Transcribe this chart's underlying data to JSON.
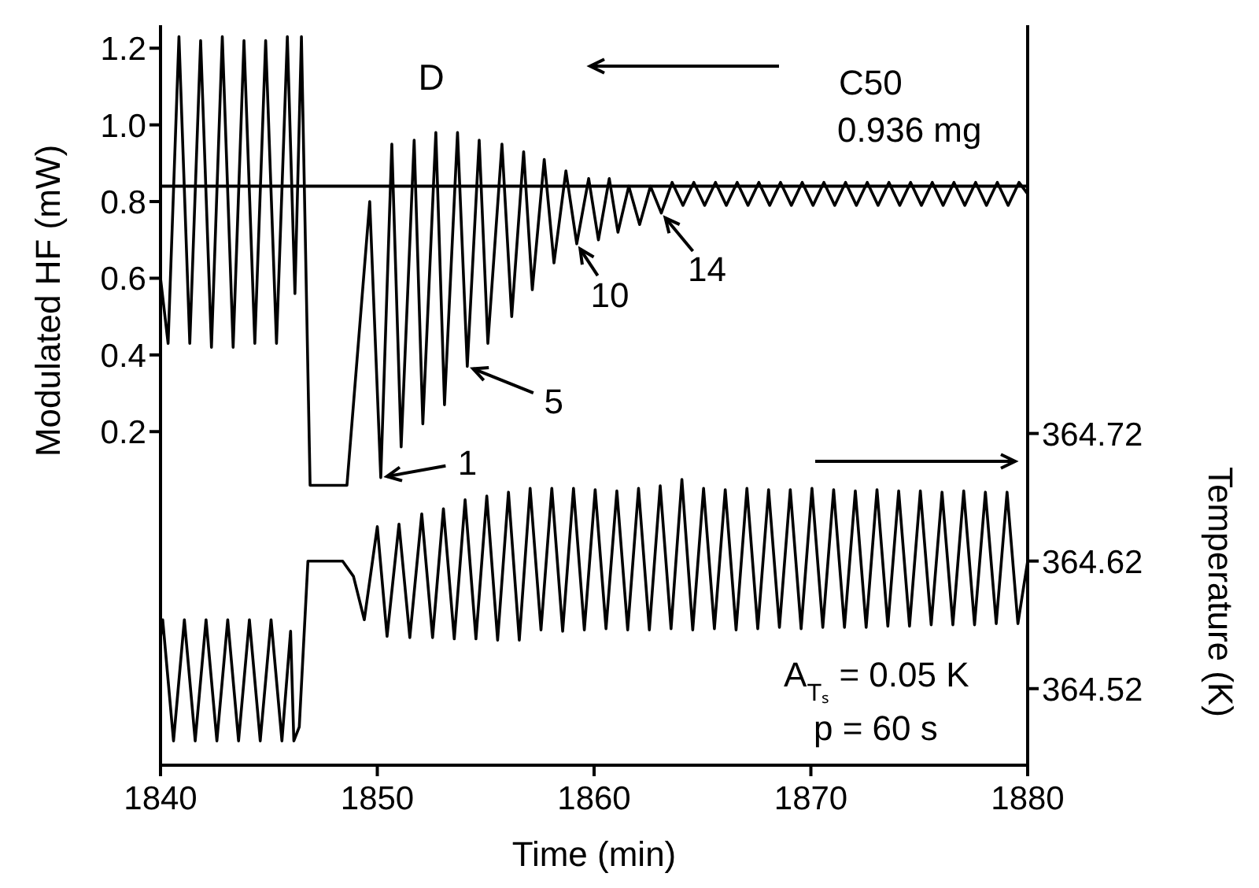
{
  "chart_data": {
    "type": "line",
    "xlabel": "Time (min)",
    "ylabel": "Modulated HF (mW)",
    "y2label": "Temperature (K)",
    "xlim": [
      1840,
      1880
    ],
    "xticks": [
      1840,
      1850,
      1860,
      1870,
      1880
    ],
    "ylim": [
      -0.67,
      1.26
    ],
    "yticks": [
      0.2,
      0.4,
      0.6,
      0.8,
      {
        "value": 1,
        "label": "1.0"
      },
      1.2
    ],
    "y2lim": [
      364.46,
      365.04
    ],
    "y2ticks": [
      364.52,
      364.62,
      364.72
    ],
    "series": [
      {
        "color": "#000000",
        "x": [
          1840,
          1840.35,
          1840.85,
          1841.35,
          1841.85,
          1842.35,
          1842.85,
          1843.35,
          1843.85,
          1844.35,
          1844.85,
          1845.35,
          1845.85,
          1846.2,
          1846.5,
          1846.9,
          1848.6,
          1849.65,
          1850.16,
          1850.67,
          1851.1,
          1851.7,
          1852.1,
          1852.7,
          1853.1,
          1853.7,
          1854.15,
          1854.7,
          1855.1,
          1855.75,
          1856.2,
          1856.75,
          1857.15,
          1857.7,
          1858.15,
          1858.7,
          1859.2,
          1859.75,
          1860.2,
          1860.7,
          1861.1,
          1861.6,
          1862.1,
          1862.6,
          1863.1,
          1863.6,
          1864.1,
          1864.6,
          1865.1,
          1865.6,
          1866.1,
          1866.6,
          1867.1,
          1867.6,
          1868.1,
          1868.6,
          1869.1,
          1869.6,
          1870.1,
          1870.6,
          1871.1,
          1871.6,
          1872.1,
          1872.6,
          1873.1,
          1873.6,
          1874.1,
          1874.6,
          1875.1,
          1875.6,
          1876.1,
          1876.6,
          1877.1,
          1877.6,
          1878.1,
          1878.6,
          1879.1,
          1879.6,
          1880
        ],
        "values": [
          0.6,
          0.43,
          1.23,
          0.43,
          1.22,
          0.42,
          1.23,
          0.42,
          1.22,
          0.43,
          1.22,
          0.43,
          1.23,
          0.56,
          1.23,
          0.06,
          0.06,
          0.8,
          0.08,
          0.95,
          0.16,
          0.96,
          0.22,
          0.98,
          0.27,
          0.98,
          0.37,
          0.96,
          0.43,
          0.95,
          0.5,
          0.93,
          0.57,
          0.91,
          0.64,
          0.88,
          0.69,
          0.86,
          0.7,
          0.86,
          0.72,
          0.84,
          0.74,
          0.84,
          0.77,
          0.85,
          0.79,
          0.85,
          0.79,
          0.85,
          0.79,
          0.85,
          0.79,
          0.85,
          0.79,
          0.85,
          0.79,
          0.85,
          0.79,
          0.85,
          0.79,
          0.85,
          0.79,
          0.85,
          0.79,
          0.85,
          0.79,
          0.85,
          0.79,
          0.85,
          0.79,
          0.85,
          0.79,
          0.85,
          0.79,
          0.85,
          0.79,
          0.85,
          0.82
        ]
      },
      {
        "color": "#000000",
        "axis": "y2",
        "x": [
          1840,
          1840.1,
          1840.6,
          1841.1,
          1841.6,
          1842.1,
          1842.6,
          1843.1,
          1843.6,
          1844.1,
          1844.6,
          1845.1,
          1845.6,
          1846.0,
          1846.15,
          1846.4,
          1846.8,
          1848.4,
          1848.9,
          1849.4,
          1850.0,
          1850.45,
          1851.0,
          1851.5,
          1852.05,
          1852.55,
          1853.05,
          1853.55,
          1854.05,
          1854.55,
          1855.05,
          1855.55,
          1856.05,
          1856.55,
          1857.05,
          1857.55,
          1858.05,
          1858.55,
          1859.05,
          1859.55,
          1860.05,
          1860.55,
          1861.05,
          1861.55,
          1862.05,
          1862.55,
          1863.05,
          1863.55,
          1864.05,
          1864.55,
          1865.05,
          1865.55,
          1866.05,
          1866.55,
          1867.05,
          1867.55,
          1868.05,
          1868.55,
          1869.05,
          1869.55,
          1870.05,
          1870.55,
          1871.05,
          1871.55,
          1872.05,
          1872.55,
          1873.05,
          1873.55,
          1874.05,
          1874.55,
          1875.05,
          1875.55,
          1876.05,
          1876.55,
          1877.05,
          1877.55,
          1878.05,
          1878.55,
          1879.05,
          1879.55,
          1880
        ],
        "values": [
          364.56,
          364.574,
          364.479,
          364.574,
          364.479,
          364.574,
          364.479,
          364.574,
          364.479,
          364.574,
          364.479,
          364.574,
          364.479,
          364.565,
          364.479,
          364.49,
          364.62,
          364.62,
          364.608,
          364.574,
          364.647,
          364.561,
          364.649,
          364.56,
          364.657,
          364.56,
          364.661,
          364.559,
          364.668,
          364.559,
          364.671,
          364.558,
          364.674,
          364.558,
          364.677,
          364.566,
          364.677,
          364.565,
          364.677,
          364.566,
          364.676,
          364.567,
          364.675,
          364.566,
          364.677,
          364.566,
          364.679,
          364.567,
          364.684,
          364.566,
          364.677,
          364.567,
          364.676,
          364.566,
          364.677,
          364.567,
          364.676,
          364.568,
          364.676,
          364.567,
          364.677,
          364.568,
          364.676,
          364.568,
          364.675,
          364.568,
          364.676,
          364.569,
          364.675,
          364.569,
          364.675,
          364.57,
          364.674,
          364.57,
          364.675,
          364.57,
          364.674,
          364.571,
          364.674,
          364.571,
          364.62
        ]
      }
    ],
    "ref_lines": [
      {
        "axis": "y",
        "value": 0.84,
        "color": "#000000"
      }
    ],
    "annotations": [
      "D",
      "C50",
      "0.936 mg",
      {
        "text": "1",
        "x": 1850.16,
        "y": 0.08
      },
      {
        "text": "5",
        "x": 1854.15,
        "y": 0.37
      },
      {
        "text": "10",
        "x": 1859.2,
        "y": 0.69
      },
      {
        "text": "14",
        "x": 1863.1,
        "y": 0.77
      },
      "A$_{Tₛ}$ = 0.05 K",
      "p = 60 s"
    ]
  }
}
